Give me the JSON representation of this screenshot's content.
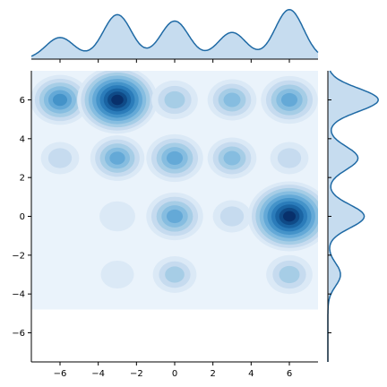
{
  "chart_data": {
    "type": "heatmap",
    "plot_kind": "jointplot-kde",
    "title": "",
    "xlabel": "",
    "ylabel": "",
    "xlim": [
      -7.5,
      7.5
    ],
    "ylim": [
      -7.5,
      7.5
    ],
    "xticks": [
      -6,
      -4,
      -2,
      0,
      2,
      4,
      6
    ],
    "yticks": [
      -6,
      -4,
      -2,
      0,
      2,
      4,
      6
    ],
    "grid": false,
    "legend": "none",
    "colors": {
      "fill_low": "#eaf3fb",
      "fill_high": "#08306b",
      "marginal_line": "#1f6aa5",
      "marginal_fill": "#c6dcef"
    },
    "contour_support": {
      "x": [
        -7.5,
        7.5
      ],
      "y": [
        -4.8,
        7.5
      ]
    },
    "clusters": [
      {
        "x": -6,
        "y": 6,
        "intensity": 0.55
      },
      {
        "x": -3,
        "y": 6,
        "intensity": 0.95
      },
      {
        "x": 0,
        "y": 6,
        "intensity": 0.3
      },
      {
        "x": 3,
        "y": 6,
        "intensity": 0.35
      },
      {
        "x": 6,
        "y": 6,
        "intensity": 0.5
      },
      {
        "x": -6,
        "y": 3,
        "intensity": 0.15
      },
      {
        "x": -3,
        "y": 3,
        "intensity": 0.45
      },
      {
        "x": 0,
        "y": 3,
        "intensity": 0.5
      },
      {
        "x": 3,
        "y": 3,
        "intensity": 0.35
      },
      {
        "x": 6,
        "y": 3,
        "intensity": 0.15
      },
      {
        "x": -3,
        "y": 0,
        "intensity": 0.1
      },
      {
        "x": 0,
        "y": 0,
        "intensity": 0.5
      },
      {
        "x": 3,
        "y": 0,
        "intensity": 0.15
      },
      {
        "x": 6,
        "y": 0,
        "intensity": 1.0
      },
      {
        "x": -3,
        "y": -3,
        "intensity": 0.05
      },
      {
        "x": 0,
        "y": -3,
        "intensity": 0.25
      },
      {
        "x": 6,
        "y": -3,
        "intensity": 0.3
      }
    ],
    "marginal_x": {
      "peaks": [
        {
          "x": -6,
          "density": 0.34
        },
        {
          "x": -3,
          "density": 0.7
        },
        {
          "x": 0,
          "density": 0.6
        },
        {
          "x": 3,
          "density": 0.42
        },
        {
          "x": 6,
          "density": 0.78
        }
      ]
    },
    "marginal_y": {
      "peaks": [
        {
          "y": 6,
          "density": 0.72
        },
        {
          "y": 3,
          "density": 0.43
        },
        {
          "y": 0,
          "density": 0.52
        },
        {
          "y": -3,
          "density": 0.18
        }
      ]
    }
  }
}
